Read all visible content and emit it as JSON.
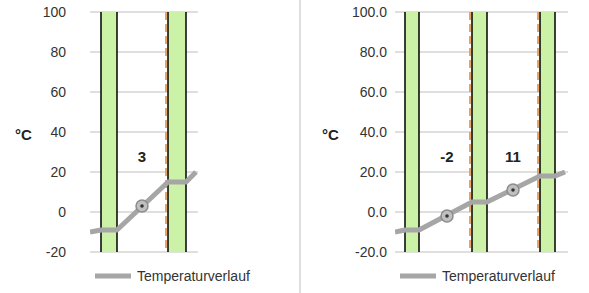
{
  "chart_data": [
    {
      "type": "line",
      "y_label": "°C",
      "x": [
        0,
        11,
        27,
        78,
        96,
        106
      ],
      "series": [
        {
          "name": "Temperaturverlauf",
          "color": "#a6a6a6",
          "values": [
            -10,
            -9,
            -9,
            15,
            15,
            20
          ]
        }
      ],
      "xlim": [
        0,
        108
      ],
      "ylim": [
        -20,
        100
      ],
      "yticks": [
        -20,
        0,
        20,
        40,
        60,
        80,
        100
      ],
      "grid": true,
      "tick_labels": "y",
      "legend": "bottom",
      "layers": {
        "from": [
          11,
          78
        ],
        "to": [
          27,
          96
        ],
        "color": "#ccf2a8"
      },
      "dashed_lines": {
        "x": [
          78
        ],
        "color": "#e9a366"
      },
      "points": {
        "x": [
          52
        ],
        "values": [
          3
        ]
      },
      "data_labels": true
    },
    {
      "type": "line",
      "y_label": "°C",
      "x": [
        0,
        10,
        24,
        77,
        92,
        145,
        160,
        170
      ],
      "series": [
        {
          "name": "Temperaturverlauf",
          "color": "#a6a6a6",
          "values": [
            -10,
            -9,
            -9,
            5,
            5,
            18,
            18,
            20
          ]
        }
      ],
      "xlim": [
        0,
        173
      ],
      "ylim": [
        -20,
        100
      ],
      "yticks": [
        {
          "value": -20,
          "label": "-20.0"
        },
        {
          "value": 0,
          "label": "0.0"
        },
        {
          "value": 20,
          "label": "20.0"
        },
        {
          "value": 40,
          "label": "40.0"
        },
        {
          "value": 60,
          "label": "60.0"
        },
        {
          "value": 80,
          "label": "80.0"
        },
        {
          "value": 100,
          "label": "100.0"
        }
      ],
      "grid": true,
      "tick_labels": "y",
      "legend": "bottom",
      "layers": {
        "from": [
          10,
          77,
          145
        ],
        "to": [
          24,
          92,
          160
        ],
        "color": "#ccf2a8"
      },
      "dashed_lines": {
        "x": [
          77,
          145
        ],
        "color": "#e9a366"
      },
      "points": {
        "x": [
          52,
          118
        ],
        "values": [
          -2,
          11
        ]
      },
      "data_labels": true
    }
  ]
}
